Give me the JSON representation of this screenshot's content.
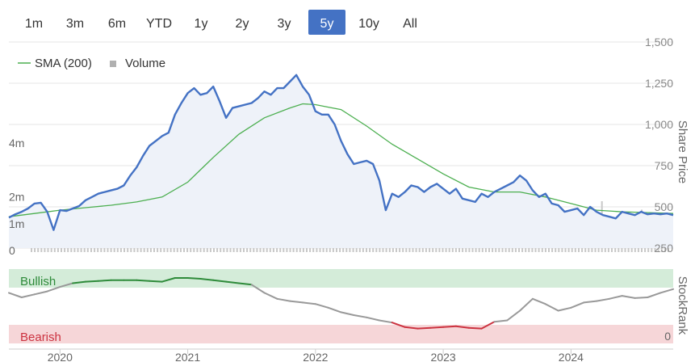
{
  "range_buttons": [
    {
      "label": "1m",
      "selected": false
    },
    {
      "label": "3m",
      "selected": false
    },
    {
      "label": "6m",
      "selected": false
    },
    {
      "label": "YTD",
      "selected": false
    },
    {
      "label": "1y",
      "selected": false
    },
    {
      "label": "2y",
      "selected": false
    },
    {
      "label": "3y",
      "selected": false
    },
    {
      "label": "5y",
      "selected": true
    },
    {
      "label": "10y",
      "selected": false
    },
    {
      "label": "All",
      "selected": false
    }
  ],
  "legend": [
    {
      "label": "SMA (200)",
      "color": "#4caf50",
      "marker": "line"
    },
    {
      "label": "Volume",
      "color": "#b0b0b0",
      "marker": "square"
    }
  ],
  "colors": {
    "price_line": "#4472c4",
    "price_fill": "#eef2f9",
    "sma_line": "#4caf50",
    "volume_bars": "#c8c8c8",
    "selected_button_bg": "#4472c4",
    "bullish_band": "#d4ecd9",
    "bearish_band": "#f6d6d8",
    "stockrank_neutral": "#999999",
    "stockrank_bullish": "#2e8b3a",
    "stockrank_bearish": "#cc3340"
  },
  "chart_data": [
    {
      "type": "line",
      "title": "",
      "ylabel": "Share Price",
      "y_ticks": [
        {
          "label": "250",
          "value": 250
        },
        {
          "label": "500",
          "value": 500
        },
        {
          "label": "750",
          "value": 750
        },
        {
          "label": "1,000",
          "value": 1000
        },
        {
          "label": "1,250",
          "value": 1250
        },
        {
          "label": "1,500",
          "value": 1500
        }
      ],
      "ylim": [
        250,
        1500
      ],
      "x_ticks": [
        {
          "label": "2020",
          "value": 2020.0
        },
        {
          "label": "2021",
          "value": 2021.0
        },
        {
          "label": "2022",
          "value": 2022.0
        },
        {
          "label": "2023",
          "value": 2023.0
        },
        {
          "label": "2024",
          "value": 2024.0
        }
      ],
      "xlim": [
        2019.6,
        2024.8
      ],
      "grid": true,
      "legend_position": "top-left",
      "series": [
        {
          "name": "SMA (200)",
          "x": [
            2019.6,
            2019.8,
            2020.0,
            2020.2,
            2020.4,
            2020.6,
            2020.8,
            2021.0,
            2021.2,
            2021.4,
            2021.6,
            2021.8,
            2021.9,
            2022.0,
            2022.1,
            2022.2,
            2022.4,
            2022.6,
            2022.8,
            2023.0,
            2023.2,
            2023.4,
            2023.6,
            2023.8,
            2024.0,
            2024.2,
            2024.4,
            2024.6,
            2024.8
          ],
          "values": [
            440,
            460,
            480,
            495,
            510,
            530,
            560,
            650,
            800,
            940,
            1040,
            1100,
            1125,
            1120,
            1105,
            1090,
            990,
            880,
            790,
            700,
            620,
            590,
            590,
            560,
            520,
            480,
            470,
            465,
            460
          ]
        },
        {
          "name": "Price",
          "x": [
            2019.6,
            2019.65,
            2019.7,
            2019.75,
            2019.8,
            2019.85,
            2019.9,
            2019.95,
            2020.0,
            2020.05,
            2020.1,
            2020.15,
            2020.2,
            2020.25,
            2020.3,
            2020.35,
            2020.4,
            2020.45,
            2020.5,
            2020.55,
            2020.6,
            2020.65,
            2020.7,
            2020.75,
            2020.8,
            2020.85,
            2020.9,
            2020.95,
            2021.0,
            2021.05,
            2021.1,
            2021.15,
            2021.2,
            2021.25,
            2021.3,
            2021.35,
            2021.4,
            2021.45,
            2021.5,
            2021.55,
            2021.6,
            2021.65,
            2021.7,
            2021.75,
            2021.8,
            2021.85,
            2021.9,
            2021.95,
            2022.0,
            2022.05,
            2022.1,
            2022.15,
            2022.2,
            2022.25,
            2022.3,
            2022.35,
            2022.4,
            2022.45,
            2022.5,
            2022.55,
            2022.6,
            2022.65,
            2022.7,
            2022.75,
            2022.8,
            2022.85,
            2022.9,
            2022.95,
            2023.0,
            2023.05,
            2023.1,
            2023.15,
            2023.2,
            2023.25,
            2023.3,
            2023.35,
            2023.4,
            2023.45,
            2023.5,
            2023.55,
            2023.6,
            2023.65,
            2023.7,
            2023.75,
            2023.8,
            2023.85,
            2023.9,
            2023.95,
            2024.0,
            2024.05,
            2024.1,
            2024.15,
            2024.2,
            2024.25,
            2024.3,
            2024.35,
            2024.4,
            2024.45,
            2024.5,
            2024.55,
            2024.6,
            2024.65,
            2024.7,
            2024.75,
            2024.8
          ],
          "values": [
            435,
            455,
            470,
            490,
            520,
            525,
            470,
            360,
            480,
            475,
            490,
            505,
            540,
            560,
            580,
            590,
            600,
            610,
            630,
            690,
            740,
            810,
            870,
            900,
            930,
            950,
            1060,
            1130,
            1190,
            1220,
            1180,
            1190,
            1230,
            1140,
            1040,
            1100,
            1110,
            1120,
            1130,
            1160,
            1200,
            1180,
            1220,
            1220,
            1260,
            1300,
            1230,
            1180,
            1080,
            1060,
            1060,
            1000,
            900,
            820,
            760,
            770,
            780,
            760,
            660,
            480,
            580,
            560,
            590,
            630,
            620,
            590,
            620,
            640,
            610,
            580,
            610,
            550,
            540,
            530,
            580,
            560,
            590,
            610,
            630,
            650,
            690,
            660,
            600,
            560,
            580,
            520,
            510,
            470,
            480,
            490,
            450,
            500,
            470,
            450,
            440,
            430,
            470,
            460,
            450,
            470,
            455,
            460,
            455,
            460,
            450
          ]
        }
      ]
    },
    {
      "type": "bar",
      "title": "Volume",
      "y_ticks": [
        {
          "label": "0",
          "value": 0
        },
        {
          "label": "1m",
          "value": 1
        },
        {
          "label": "2m",
          "value": 2
        },
        {
          "label": "4m",
          "value": 4
        }
      ],
      "ylim": [
        0,
        5
      ],
      "unit": "millions",
      "values": [
        0.4,
        0.5,
        0.3,
        0.6,
        0.9,
        0.5,
        0.4,
        0.7,
        1.0,
        0.4,
        0.3,
        0.5,
        0.6,
        0.8,
        0.4,
        0.3,
        0.5,
        0.6,
        0.4,
        0.7,
        0.5,
        0.3,
        0.4,
        0.6,
        0.9,
        0.5,
        0.4,
        0.3,
        0.6,
        0.7,
        0.5,
        0.4,
        0.3,
        0.5,
        0.8,
        0.6,
        0.4,
        0.5,
        0.7,
        0.4,
        0.6,
        0.9,
        1.1,
        0.5,
        0.4,
        0.6,
        0.7,
        0.4,
        0.5,
        0.8,
        0.6,
        0.5,
        0.4,
        0.7,
        0.9,
        0.5,
        0.4,
        0.6,
        0.8,
        0.5,
        0.4,
        0.7,
        0.6,
        0.5,
        0.8,
        1.0,
        0.6,
        0.5,
        0.4,
        0.7,
        0.5,
        0.8,
        1.5,
        0.9,
        0.6,
        1.2,
        0.7,
        0.5,
        0.9,
        1.6,
        0.8,
        0.6,
        0.5,
        1.0,
        0.7,
        0.9,
        1.3,
        0.6,
        0.8,
        1.0,
        1.1,
        0.7,
        0.5,
        0.9,
        1.4,
        0.8,
        0.6,
        0.7,
        1.0,
        0.5,
        0.8,
        1.2,
        0.7,
        0.6,
        0.9,
        0.8,
        1.0,
        0.7,
        0.6,
        0.5,
        1.8,
        1.2,
        0.7,
        0.9,
        0.6,
        0.8,
        0.5,
        0.7,
        1.1,
        0.8,
        0.6,
        0.9,
        0.7,
        0.5,
        0.6,
        0.8,
        1.0,
        0.7,
        0.5,
        0.9,
        0.6,
        1.1,
        0.7,
        0.5,
        0.8,
        1.0,
        0.6,
        0.7,
        0.5,
        1.2,
        0.8,
        0.6,
        0.7,
        0.5,
        0.6,
        0.9,
        0.7,
        0.5,
        0.8,
        1.0,
        0.6,
        0.5,
        0.7,
        1.3,
        0.8,
        0.6,
        0.7,
        0.5,
        1.4,
        0.9,
        0.6,
        0.7,
        0.5,
        0.6,
        0.9,
        0.7,
        0.5,
        0.8,
        1.0,
        0.6,
        0.5,
        0.7,
        1.8,
        0.6,
        0.5,
        0.9,
        0.7,
        0.6,
        1.1,
        0.8,
        0.6,
        0.5,
        0.7,
        0.9,
        1.5,
        0.8,
        0.6,
        0.5,
        0.7,
        0.6,
        0.8,
        0.5,
        0.6
      ]
    },
    {
      "type": "line",
      "title": "",
      "ylabel": "StockRank",
      "y_ticks": [
        {
          "label": "0",
          "value": 0
        }
      ],
      "ylim": [
        0,
        100
      ],
      "bands": [
        {
          "label": "Bullish",
          "from": 75,
          "to": 100
        },
        {
          "label": "Bearish",
          "from": 0,
          "to": 25
        }
      ],
      "x": [
        2019.6,
        2019.7,
        2019.8,
        2019.9,
        2020.0,
        2020.1,
        2020.2,
        2020.3,
        2020.4,
        2020.5,
        2020.6,
        2020.7,
        2020.8,
        2020.9,
        2021.0,
        2021.1,
        2021.2,
        2021.3,
        2021.4,
        2021.5,
        2021.6,
        2021.7,
        2021.8,
        2021.9,
        2022.0,
        2022.1,
        2022.2,
        2022.3,
        2022.4,
        2022.5,
        2022.6,
        2022.7,
        2022.8,
        2022.9,
        2023.0,
        2023.1,
        2023.2,
        2023.3,
        2023.4,
        2023.5,
        2023.6,
        2023.7,
        2023.8,
        2023.9,
        2024.0,
        2024.1,
        2024.2,
        2024.3,
        2024.4,
        2024.5,
        2024.6,
        2024.7,
        2024.8
      ],
      "values": [
        68,
        62,
        66,
        70,
        76,
        81,
        83,
        84,
        85,
        85,
        85,
        84,
        83,
        88,
        88,
        87,
        85,
        83,
        81,
        79,
        68,
        60,
        57,
        55,
        53,
        48,
        42,
        38,
        35,
        31,
        28,
        22,
        20,
        21,
        22,
        23,
        21,
        20,
        29,
        31,
        44,
        60,
        53,
        44,
        48,
        55,
        57,
        60,
        64,
        61,
        62,
        68,
        73
      ]
    }
  ],
  "stockrank": {
    "bullish_label": "Bullish",
    "bearish_label": "Bearish"
  }
}
